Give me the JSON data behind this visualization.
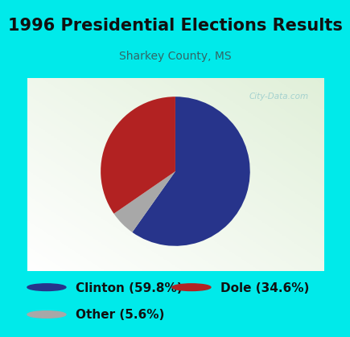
{
  "title": "1996 Presidential Elections Results",
  "subtitle": "Sharkey County, MS",
  "slices": [
    59.8,
    34.6,
    5.6
  ],
  "labels": [
    "Clinton (59.8%)",
    "Dole (34.6%)",
    "Other (5.6%)"
  ],
  "colors": [
    "#27348b",
    "#b22222",
    "#a8a8a8"
  ],
  "background_cyan": "#00eaea",
  "background_chart_color": "#e8f2e0",
  "title_color": "#111111",
  "subtitle_color": "#336666",
  "title_fontsize": 15,
  "subtitle_fontsize": 10,
  "legend_fontsize": 11,
  "watermark_color": "#99cccc",
  "watermark_text": "City-Data.com"
}
